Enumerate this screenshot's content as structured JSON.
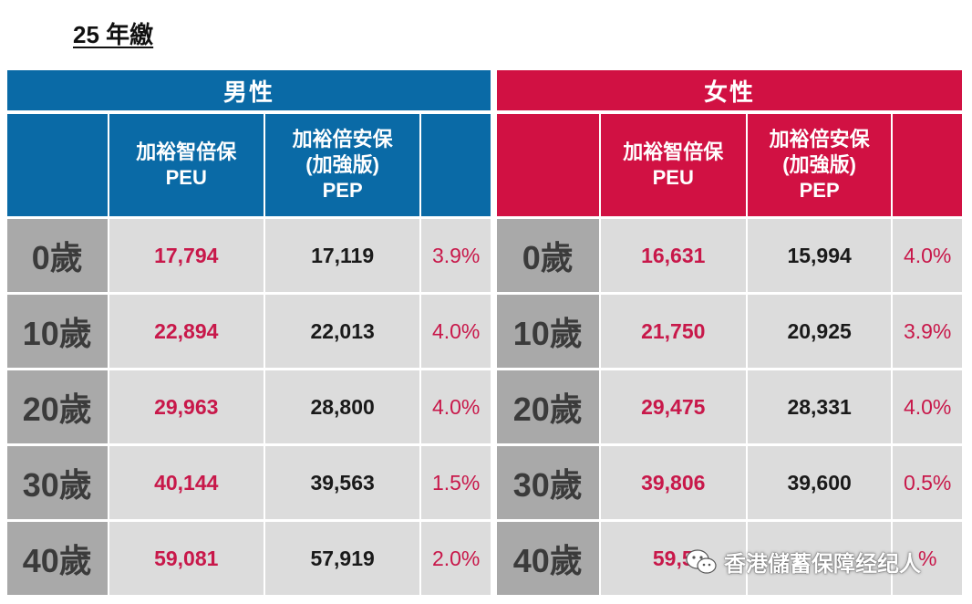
{
  "title": "25 年繳",
  "male": {
    "header": "男性",
    "col_peu": [
      "加裕智倍保",
      "PEU"
    ],
    "col_pep": [
      "加裕倍安保",
      "(加強版)",
      "PEP"
    ],
    "rows": [
      {
        "age": "0歲",
        "peu": "17,794",
        "pep": "17,119",
        "pct": "3.9%"
      },
      {
        "age": "10歲",
        "peu": "22,894",
        "pep": "22,013",
        "pct": "4.0%"
      },
      {
        "age": "20歲",
        "peu": "29,963",
        "pep": "28,800",
        "pct": "4.0%"
      },
      {
        "age": "30歲",
        "peu": "40,144",
        "pep": "39,563",
        "pct": "1.5%"
      },
      {
        "age": "40歲",
        "peu": "59,081",
        "pep": "57,919",
        "pct": "2.0%"
      }
    ]
  },
  "female": {
    "header": "女性",
    "col_peu": [
      "加裕智倍保",
      "PEU"
    ],
    "col_pep": [
      "加裕倍安保",
      "(加強版)",
      "PEP"
    ],
    "rows": [
      {
        "age": "0歲",
        "peu": "16,631",
        "pep": "15,994",
        "pct": "4.0%"
      },
      {
        "age": "10歲",
        "peu": "21,750",
        "pep": "20,925",
        "pct": "3.9%"
      },
      {
        "age": "20歲",
        "peu": "29,475",
        "pep": "28,331",
        "pct": "4.0%"
      },
      {
        "age": "30歲",
        "peu": "39,806",
        "pep": "39,600",
        "pct": "0.5%"
      },
      {
        "age": "40歲",
        "peu": "59,5",
        "pep": "",
        "pct": "%"
      }
    ]
  },
  "watermark": {
    "text": "香港儲蓄保障经纪人",
    "icon": "wechat-icon"
  }
}
